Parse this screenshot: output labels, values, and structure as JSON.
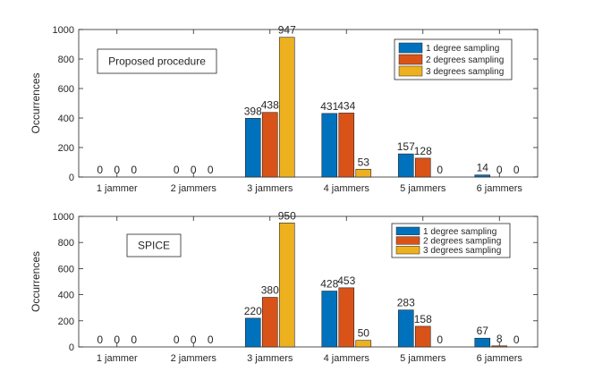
{
  "chart_data": [
    {
      "type": "bar",
      "title": "",
      "xlabel": "",
      "ylabel": "Occurrences",
      "ylim": [
        0,
        1000
      ],
      "yticks": [
        "0",
        "200",
        "400",
        "600",
        "800",
        "1000"
      ],
      "categories": [
        "1 jammer",
        "2 jammers",
        "3 jammers",
        "4 jammers",
        "5 jammers",
        "6 jammers"
      ],
      "annotation": "Proposed procedure",
      "legend_position": "top-right",
      "series": [
        {
          "name": "1 degree sampling",
          "color": "#0072BD",
          "values": [
            0,
            0,
            398,
            431,
            157,
            14
          ]
        },
        {
          "name": "2 degrees sampling",
          "color": "#D95319",
          "values": [
            0,
            0,
            438,
            434,
            128,
            0
          ]
        },
        {
          "name": "3 degrees sampling",
          "color": "#EDB120",
          "values": [
            0,
            0,
            947,
            53,
            0,
            0
          ]
        }
      ]
    },
    {
      "type": "bar",
      "title": "",
      "xlabel": "",
      "ylabel": "Occurrences",
      "ylim": [
        0,
        1000
      ],
      "yticks": [
        "0",
        "200",
        "400",
        "600",
        "800",
        "1000"
      ],
      "categories": [
        "1 jammer",
        "2 jammers",
        "3 jammers",
        "4 jammers",
        "5 jammers",
        "6 jammers"
      ],
      "annotation": "SPICE",
      "legend_position": "top-right",
      "series": [
        {
          "name": "1 degree sampling",
          "color": "#0072BD",
          "values": [
            0,
            0,
            220,
            428,
            283,
            67
          ]
        },
        {
          "name": "2 degrees sampling",
          "color": "#D95319",
          "values": [
            0,
            0,
            380,
            453,
            158,
            8
          ]
        },
        {
          "name": "3 degrees sampling",
          "color": "#EDB120",
          "values": [
            0,
            0,
            950,
            50,
            0,
            0
          ]
        }
      ]
    }
  ]
}
